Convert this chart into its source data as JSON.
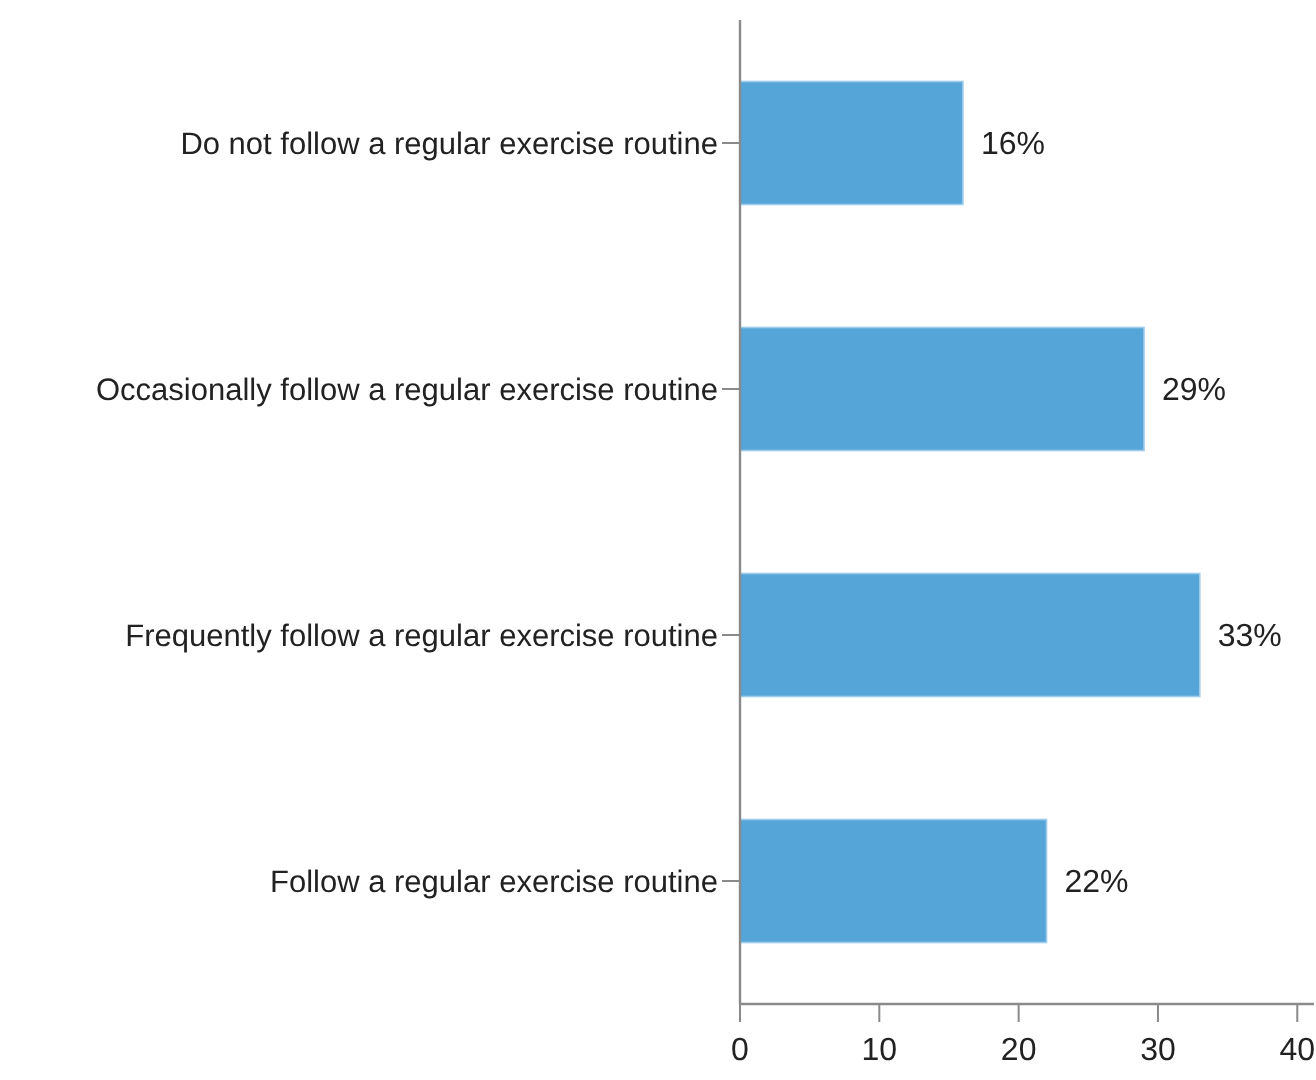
{
  "chart_data": {
    "type": "bar",
    "orientation": "horizontal",
    "categories": [
      "Do not follow a regular exercise routine",
      "Occasionally follow a regular exercise routine",
      "Frequently follow a regular exercise routine",
      "Follow a regular exercise routine"
    ],
    "values": [
      16,
      29,
      33,
      22
    ],
    "color": "#56a5d8",
    "value_labels": [
      "16%",
      "29%",
      "33%",
      "22%"
    ],
    "xlim": [
      0,
      41.2
    ],
    "xticks": [
      0,
      10,
      20,
      30,
      40
    ]
  }
}
